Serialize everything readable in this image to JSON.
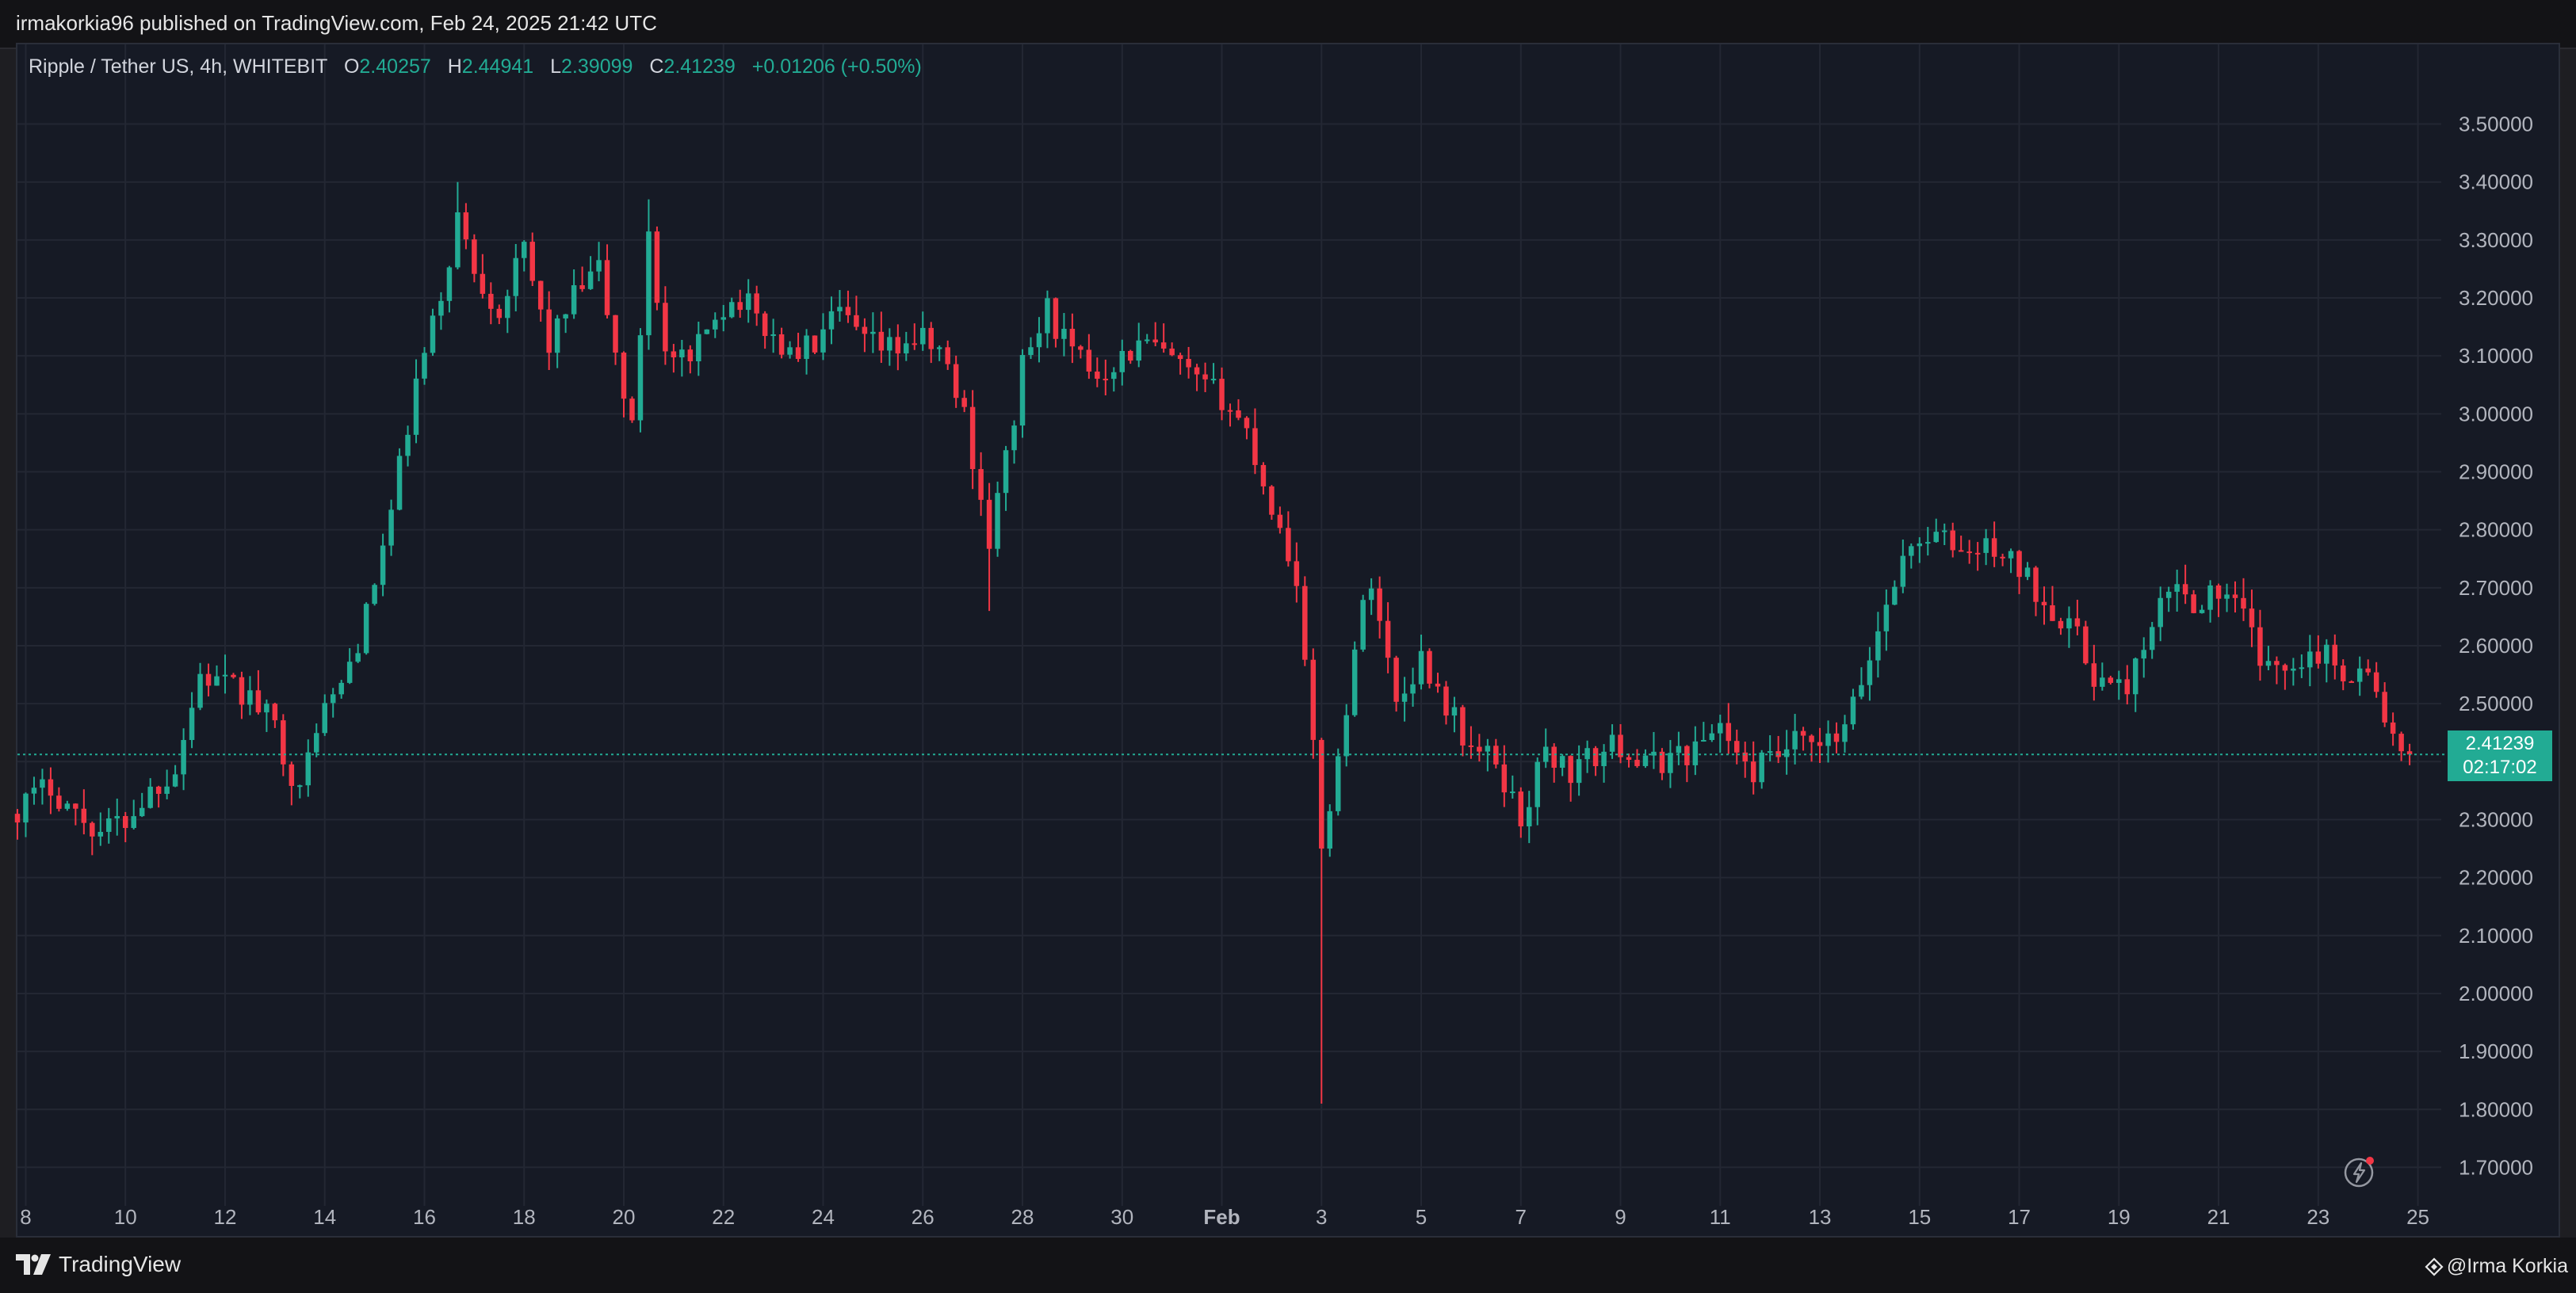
{
  "header": {
    "publish_line": "irmakorkia96 published on TradingView.com, Feb 24, 2025 21:42 UTC"
  },
  "legend": {
    "symbol": "Ripple / Tether US, 4h, WHITEBIT",
    "open_label": "O",
    "open": "2.40257",
    "high_label": "H",
    "high": "2.44941",
    "low_label": "L",
    "low": "2.39099",
    "close_label": "C",
    "close": "2.41239",
    "change": "+0.01206 (+0.50%)"
  },
  "price_tag": {
    "price": "2.41239",
    "countdown": "02:17:02"
  },
  "footer": {
    "brand": "TradingView",
    "author": "@Irma Korkia"
  },
  "colors": {
    "up": "#22ab94",
    "down": "#f23645",
    "background": "#161a25",
    "grid": "#232733",
    "axis_text": "#b2b5be"
  },
  "icons": [
    "tradingview-logo-icon",
    "lightning-bolt-icon",
    "author-diamond-icon"
  ],
  "chart_data": {
    "type": "candlestick",
    "title": "Ripple / Tether US, 4h, WHITEBIT",
    "xlabel": "",
    "ylabel": "",
    "x_range": [
      "2025-01-07T20:00",
      "2025-02-25T12:00"
    ],
    "ylim": [
      1.65,
      3.58
    ],
    "grid": true,
    "y_tick_labels": [
      "1.70000",
      "1.80000",
      "1.90000",
      "2.00000",
      "2.10000",
      "2.20000",
      "2.30000",
      "2.40000",
      "2.50000",
      "2.60000",
      "2.70000",
      "2.80000",
      "2.90000",
      "3.00000",
      "3.10000",
      "3.20000",
      "3.30000",
      "3.40000",
      "3.50000"
    ],
    "x_tick_labels": [
      {
        "date": "2025-01-08",
        "label": "8"
      },
      {
        "date": "2025-01-10",
        "label": "10"
      },
      {
        "date": "2025-01-12",
        "label": "12"
      },
      {
        "date": "2025-01-14",
        "label": "14"
      },
      {
        "date": "2025-01-16",
        "label": "16"
      },
      {
        "date": "2025-01-18",
        "label": "18"
      },
      {
        "date": "2025-01-20",
        "label": "20"
      },
      {
        "date": "2025-01-22",
        "label": "22"
      },
      {
        "date": "2025-01-24",
        "label": "24"
      },
      {
        "date": "2025-01-26",
        "label": "26"
      },
      {
        "date": "2025-01-28",
        "label": "28"
      },
      {
        "date": "2025-01-30",
        "label": "30"
      },
      {
        "date": "2025-02-01",
        "label": "Feb"
      },
      {
        "date": "2025-02-03",
        "label": "3"
      },
      {
        "date": "2025-02-05",
        "label": "5"
      },
      {
        "date": "2025-02-07",
        "label": "7"
      },
      {
        "date": "2025-02-09",
        "label": "9"
      },
      {
        "date": "2025-02-11",
        "label": "11"
      },
      {
        "date": "2025-02-13",
        "label": "13"
      },
      {
        "date": "2025-02-15",
        "label": "15"
      },
      {
        "date": "2025-02-17",
        "label": "17"
      },
      {
        "date": "2025-02-19",
        "label": "19"
      },
      {
        "date": "2025-02-21",
        "label": "21"
      },
      {
        "date": "2025-02-23",
        "label": "23"
      },
      {
        "date": "2025-02-25",
        "label": "25"
      }
    ],
    "current_price_line": 2.41239,
    "close_path": [
      {
        "t": "2025-01-07T20:00",
        "c": 2.32
      },
      {
        "t": "2025-01-08T12:00",
        "c": 2.36
      },
      {
        "t": "2025-01-09T00:00",
        "c": 2.31
      },
      {
        "t": "2025-01-09T12:00",
        "c": 2.28
      },
      {
        "t": "2025-01-10T00:00",
        "c": 2.3
      },
      {
        "t": "2025-01-10T12:00",
        "c": 2.35
      },
      {
        "t": "2025-01-11T00:00",
        "c": 2.39
      },
      {
        "t": "2025-01-11T12:00",
        "c": 2.55
      },
      {
        "t": "2025-01-12T00:00",
        "c": 2.53
      },
      {
        "t": "2025-01-12T12:00",
        "c": 2.51
      },
      {
        "t": "2025-01-13T00:00",
        "c": 2.46
      },
      {
        "t": "2025-01-13T12:00",
        "c": 2.34
      },
      {
        "t": "2025-01-13T20:00",
        "c": 2.47
      },
      {
        "t": "2025-01-14T08:00",
        "c": 2.53
      },
      {
        "t": "2025-01-14T20:00",
        "c": 2.65
      },
      {
        "t": "2025-01-15T08:00",
        "c": 2.83
      },
      {
        "t": "2025-01-15T20:00",
        "c": 3.05
      },
      {
        "t": "2025-01-16T08:00",
        "c": 3.2
      },
      {
        "t": "2025-01-16T16:00",
        "c": 3.34
      },
      {
        "t": "2025-01-17T00:00",
        "c": 3.25
      },
      {
        "t": "2025-01-17T12:00",
        "c": 3.18
      },
      {
        "t": "2025-01-18T00:00",
        "c": 3.28
      },
      {
        "t": "2025-01-18T12:00",
        "c": 3.12
      },
      {
        "t": "2025-01-19T00:00",
        "c": 3.2
      },
      {
        "t": "2025-01-19T12:00",
        "c": 3.25
      },
      {
        "t": "2025-01-19T20:00",
        "c": 3.1
      },
      {
        "t": "2025-01-20T04:00",
        "c": 2.97
      },
      {
        "t": "2025-01-20T12:00",
        "c": 3.32
      },
      {
        "t": "2025-01-20T20:00",
        "c": 3.1
      },
      {
        "t": "2025-01-21T08:00",
        "c": 3.08
      },
      {
        "t": "2025-01-21T20:00",
        "c": 3.18
      },
      {
        "t": "2025-01-22T08:00",
        "c": 3.2
      },
      {
        "t": "2025-01-22T20:00",
        "c": 3.15
      },
      {
        "t": "2025-01-23T08:00",
        "c": 3.1
      },
      {
        "t": "2025-01-23T20:00",
        "c": 3.12
      },
      {
        "t": "2025-01-24T08:00",
        "c": 3.17
      },
      {
        "t": "2025-01-24T20:00",
        "c": 3.12
      },
      {
        "t": "2025-01-25T08:00",
        "c": 3.11
      },
      {
        "t": "2025-01-25T20:00",
        "c": 3.13
      },
      {
        "t": "2025-01-26T08:00",
        "c": 3.11
      },
      {
        "t": "2025-01-26T20:00",
        "c": 3.0
      },
      {
        "t": "2025-01-27T08:00",
        "c": 2.78
      },
      {
        "t": "2025-01-27T16:00",
        "c": 2.92
      },
      {
        "t": "2025-01-28T00:00",
        "c": 3.08
      },
      {
        "t": "2025-01-28T12:00",
        "c": 3.18
      },
      {
        "t": "2025-01-29T00:00",
        "c": 3.1
      },
      {
        "t": "2025-01-29T12:00",
        "c": 3.07
      },
      {
        "t": "2025-01-30T00:00",
        "c": 3.1
      },
      {
        "t": "2025-01-30T12:00",
        "c": 3.12
      },
      {
        "t": "2025-01-31T00:00",
        "c": 3.09
      },
      {
        "t": "2025-01-31T12:00",
        "c": 3.05
      },
      {
        "t": "2025-02-01T00:00",
        "c": 3.03
      },
      {
        "t": "2025-02-01T12:00",
        "c": 2.97
      },
      {
        "t": "2025-02-02T00:00",
        "c": 2.84
      },
      {
        "t": "2025-02-02T12:00",
        "c": 2.72
      },
      {
        "t": "2025-02-03T00:00",
        "c": 2.26
      },
      {
        "t": "2025-02-03T08:00",
        "c": 2.4
      },
      {
        "t": "2025-02-03T16:00",
        "c": 2.6
      },
      {
        "t": "2025-02-04T00:00",
        "c": 2.72
      },
      {
        "t": "2025-02-04T12:00",
        "c": 2.5
      },
      {
        "t": "2025-02-05T00:00",
        "c": 2.58
      },
      {
        "t": "2025-02-05T12:00",
        "c": 2.5
      },
      {
        "t": "2025-02-06T00:00",
        "c": 2.42
      },
      {
        "t": "2025-02-06T12:00",
        "c": 2.4
      },
      {
        "t": "2025-02-07T00:00",
        "c": 2.3
      },
      {
        "t": "2025-02-07T12:00",
        "c": 2.42
      },
      {
        "t": "2025-02-08T00:00",
        "c": 2.38
      },
      {
        "t": "2025-02-08T12:00",
        "c": 2.41
      },
      {
        "t": "2025-02-09T00:00",
        "c": 2.43
      },
      {
        "t": "2025-02-09T12:00",
        "c": 2.39
      },
      {
        "t": "2025-02-10T00:00",
        "c": 2.41
      },
      {
        "t": "2025-02-10T12:00",
        "c": 2.42
      },
      {
        "t": "2025-02-11T00:00",
        "c": 2.47
      },
      {
        "t": "2025-02-11T12:00",
        "c": 2.38
      },
      {
        "t": "2025-02-12T00:00",
        "c": 2.4
      },
      {
        "t": "2025-02-12T12:00",
        "c": 2.43
      },
      {
        "t": "2025-02-13T00:00",
        "c": 2.42
      },
      {
        "t": "2025-02-13T12:00",
        "c": 2.45
      },
      {
        "t": "2025-02-14T00:00",
        "c": 2.58
      },
      {
        "t": "2025-02-14T12:00",
        "c": 2.72
      },
      {
        "t": "2025-02-15T00:00",
        "c": 2.79
      },
      {
        "t": "2025-02-15T12:00",
        "c": 2.78
      },
      {
        "t": "2025-02-16T00:00",
        "c": 2.76
      },
      {
        "t": "2025-02-16T12:00",
        "c": 2.77
      },
      {
        "t": "2025-02-17T00:00",
        "c": 2.73
      },
      {
        "t": "2025-02-17T12:00",
        "c": 2.68
      },
      {
        "t": "2025-02-18T00:00",
        "c": 2.64
      },
      {
        "t": "2025-02-18T12:00",
        "c": 2.55
      },
      {
        "t": "2025-02-19T00:00",
        "c": 2.52
      },
      {
        "t": "2025-02-19T12:00",
        "c": 2.58
      },
      {
        "t": "2025-02-20T00:00",
        "c": 2.7
      },
      {
        "t": "2025-02-20T12:00",
        "c": 2.68
      },
      {
        "t": "2025-02-21T00:00",
        "c": 2.69
      },
      {
        "t": "2025-02-21T12:00",
        "c": 2.65
      },
      {
        "t": "2025-02-22T00:00",
        "c": 2.55
      },
      {
        "t": "2025-02-22T12:00",
        "c": 2.58
      },
      {
        "t": "2025-02-23T00:00",
        "c": 2.59
      },
      {
        "t": "2025-02-23T12:00",
        "c": 2.56
      },
      {
        "t": "2025-02-24T00:00",
        "c": 2.55
      },
      {
        "t": "2025-02-24T08:00",
        "c": 2.48
      },
      {
        "t": "2025-02-24T16:00",
        "c": 2.4
      },
      {
        "t": "2025-02-24T20:00",
        "c": 2.41239
      }
    ],
    "notable_wicks": [
      {
        "t": "2025-01-16T16:00",
        "high": 3.4
      },
      {
        "t": "2025-01-20T12:00",
        "high": 3.37
      },
      {
        "t": "2025-01-27T08:00",
        "low": 2.66
      },
      {
        "t": "2025-02-03T00:00",
        "low": 1.81
      }
    ]
  }
}
